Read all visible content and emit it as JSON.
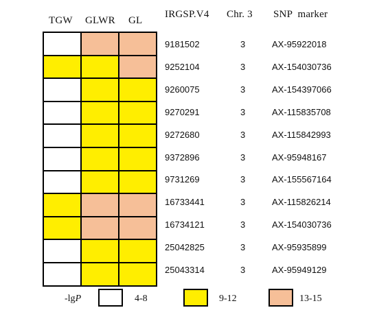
{
  "headers": {
    "tgw": "TGW",
    "glwr": "GLWR",
    "gl": "GL",
    "irgsp": "IRGSP.V4",
    "chr": "Chr. 3",
    "snp": "SNP  marker"
  },
  "colors": {
    "white": "#ffffff",
    "yellow": "#ffee00",
    "salmon": "#f6bf98"
  },
  "rows": [
    {
      "pos": "9181502",
      "chr": "3",
      "snp": "AX-95922018",
      "cells": [
        "white",
        "salmon",
        "salmon"
      ]
    },
    {
      "pos": "9252104",
      "chr": "3",
      "snp": "AX-154030736",
      "cells": [
        "yellow",
        "yellow",
        "salmon"
      ]
    },
    {
      "pos": "9260075",
      "chr": "3",
      "snp": "AX-154397066",
      "cells": [
        "white",
        "yellow",
        "yellow"
      ]
    },
    {
      "pos": "9270291",
      "chr": "3",
      "snp": "AX-115835708",
      "cells": [
        "white",
        "yellow",
        "yellow"
      ]
    },
    {
      "pos": "9272680",
      "chr": "3",
      "snp": "AX-115842993",
      "cells": [
        "white",
        "yellow",
        "yellow"
      ]
    },
    {
      "pos": "9372896",
      "chr": "3",
      "snp": "AX-95948167",
      "cells": [
        "white",
        "yellow",
        "yellow"
      ]
    },
    {
      "pos": "9731269",
      "chr": "3",
      "snp": "AX-155567164",
      "cells": [
        "white",
        "yellow",
        "yellow"
      ]
    },
    {
      "pos": "16733441",
      "chr": "3",
      "snp": "AX-115826214",
      "cells": [
        "yellow",
        "salmon",
        "salmon"
      ]
    },
    {
      "pos": "16734121",
      "chr": "3",
      "snp": "AX-154030736",
      "cells": [
        "yellow",
        "salmon",
        "salmon"
      ]
    },
    {
      "pos": "25042825",
      "chr": "3",
      "snp": "AX-95935899",
      "cells": [
        "white",
        "yellow",
        "yellow"
      ]
    },
    {
      "pos": "25043314",
      "chr": "3",
      "snp": "AX-95949129",
      "cells": [
        "white",
        "yellow",
        "yellow"
      ]
    }
  ],
  "legend": {
    "prefix": "-lg",
    "prefix_italic": "P",
    "items": [
      {
        "color": "white",
        "label": "4-8"
      },
      {
        "color": "yellow",
        "label": "9-12"
      },
      {
        "color": "salmon",
        "label": "13-15"
      }
    ]
  }
}
